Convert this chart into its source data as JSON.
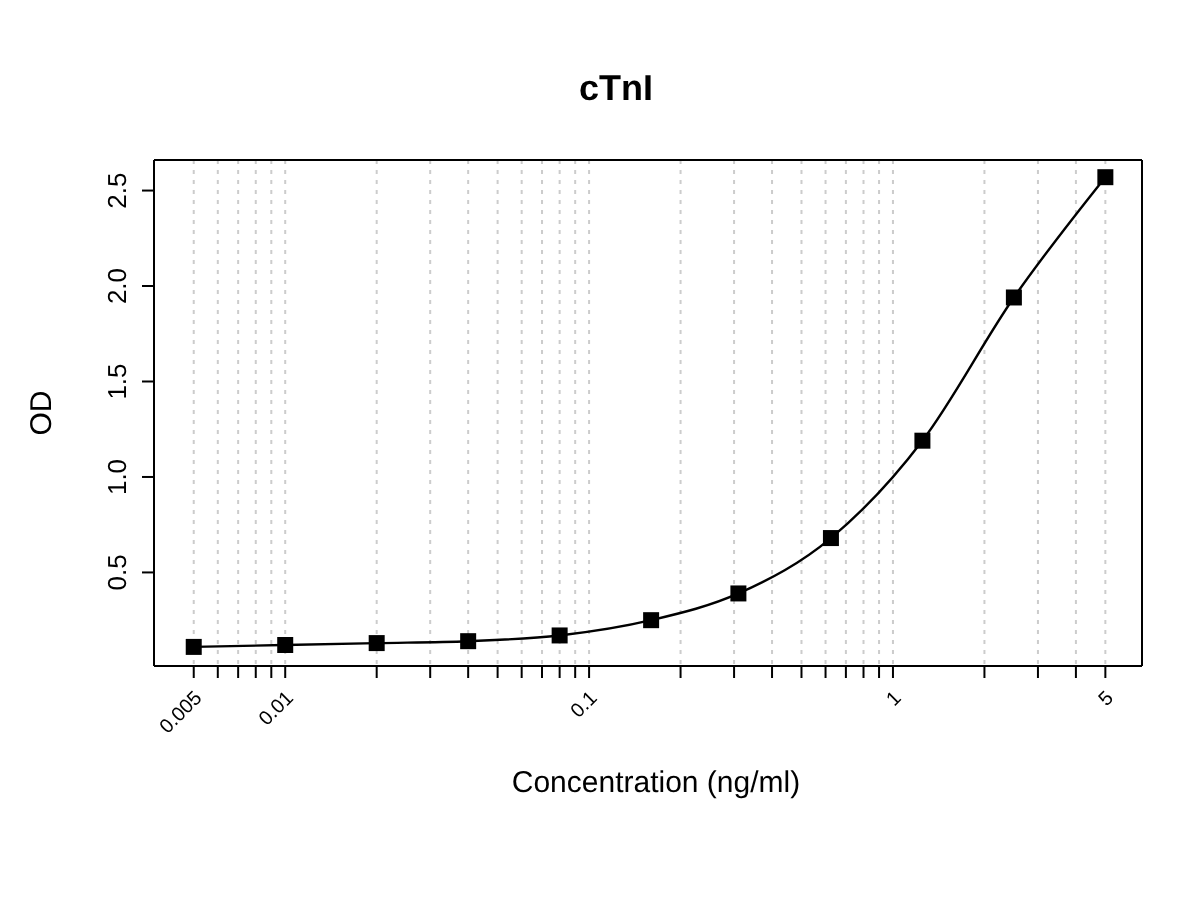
{
  "chart_data": {
    "type": "scatter",
    "title": "cTnI",
    "xlabel": "Concentration (ng/ml)",
    "ylabel": "OD",
    "log": "x",
    "grid": "x",
    "x": [
      0.005,
      0.01,
      0.02,
      0.04,
      0.08,
      0.16,
      0.31,
      0.625,
      1.25,
      2.5,
      5
    ],
    "series": [
      {
        "marker": "square",
        "color": "#000000",
        "values": [
          0.11,
          0.12,
          0.13,
          0.14,
          0.17,
          0.25,
          0.39,
          0.68,
          1.19,
          1.94,
          2.57
        ]
      },
      {
        "type": "line",
        "marker": "none",
        "line_style": "solid",
        "color": "#000000",
        "x": [
          0.005,
          0.01,
          0.02,
          0.04,
          0.08,
          0.16,
          0.31,
          0.625,
          1.25,
          2.5,
          5
        ],
        "values": [
          0.11,
          0.12,
          0.13,
          0.14,
          0.17,
          0.25,
          0.39,
          0.68,
          1.19,
          1.94,
          2.57
        ]
      }
    ],
    "xlim": [
      0.0037,
      6.6
    ],
    "ylim": [
      0.01,
      2.66
    ],
    "xticks": [
      0.005,
      {
        "value": 0.006,
        "label": null
      },
      {
        "value": 0.007,
        "label": null
      },
      {
        "value": 0.008,
        "label": null
      },
      {
        "value": 0.009,
        "label": null
      },
      0.01,
      {
        "value": 0.02,
        "label": null
      },
      {
        "value": 0.03,
        "label": null
      },
      {
        "value": 0.04,
        "label": null
      },
      {
        "value": 0.05,
        "label": null
      },
      {
        "value": 0.06,
        "label": null
      },
      {
        "value": 0.07,
        "label": null
      },
      {
        "value": 0.08,
        "label": null
      },
      {
        "value": 0.09,
        "label": null
      },
      0.1,
      {
        "value": 0.2,
        "label": null
      },
      {
        "value": 0.3,
        "label": null
      },
      {
        "value": 0.4,
        "label": null
      },
      {
        "value": 0.5,
        "label": null
      },
      {
        "value": 0.6,
        "label": null
      },
      {
        "value": 0.7,
        "label": null
      },
      {
        "value": 0.8,
        "label": null
      },
      {
        "value": 0.9,
        "label": null
      },
      1,
      {
        "value": 2,
        "label": null
      },
      {
        "value": 3,
        "label": null
      },
      {
        "value": 4,
        "label": null
      },
      5
    ],
    "yticks": [
      0.5,
      {
        "value": 1,
        "label": "1.0"
      },
      1.5,
      {
        "value": 2,
        "label": "2.0"
      },
      2.5
    ]
  }
}
